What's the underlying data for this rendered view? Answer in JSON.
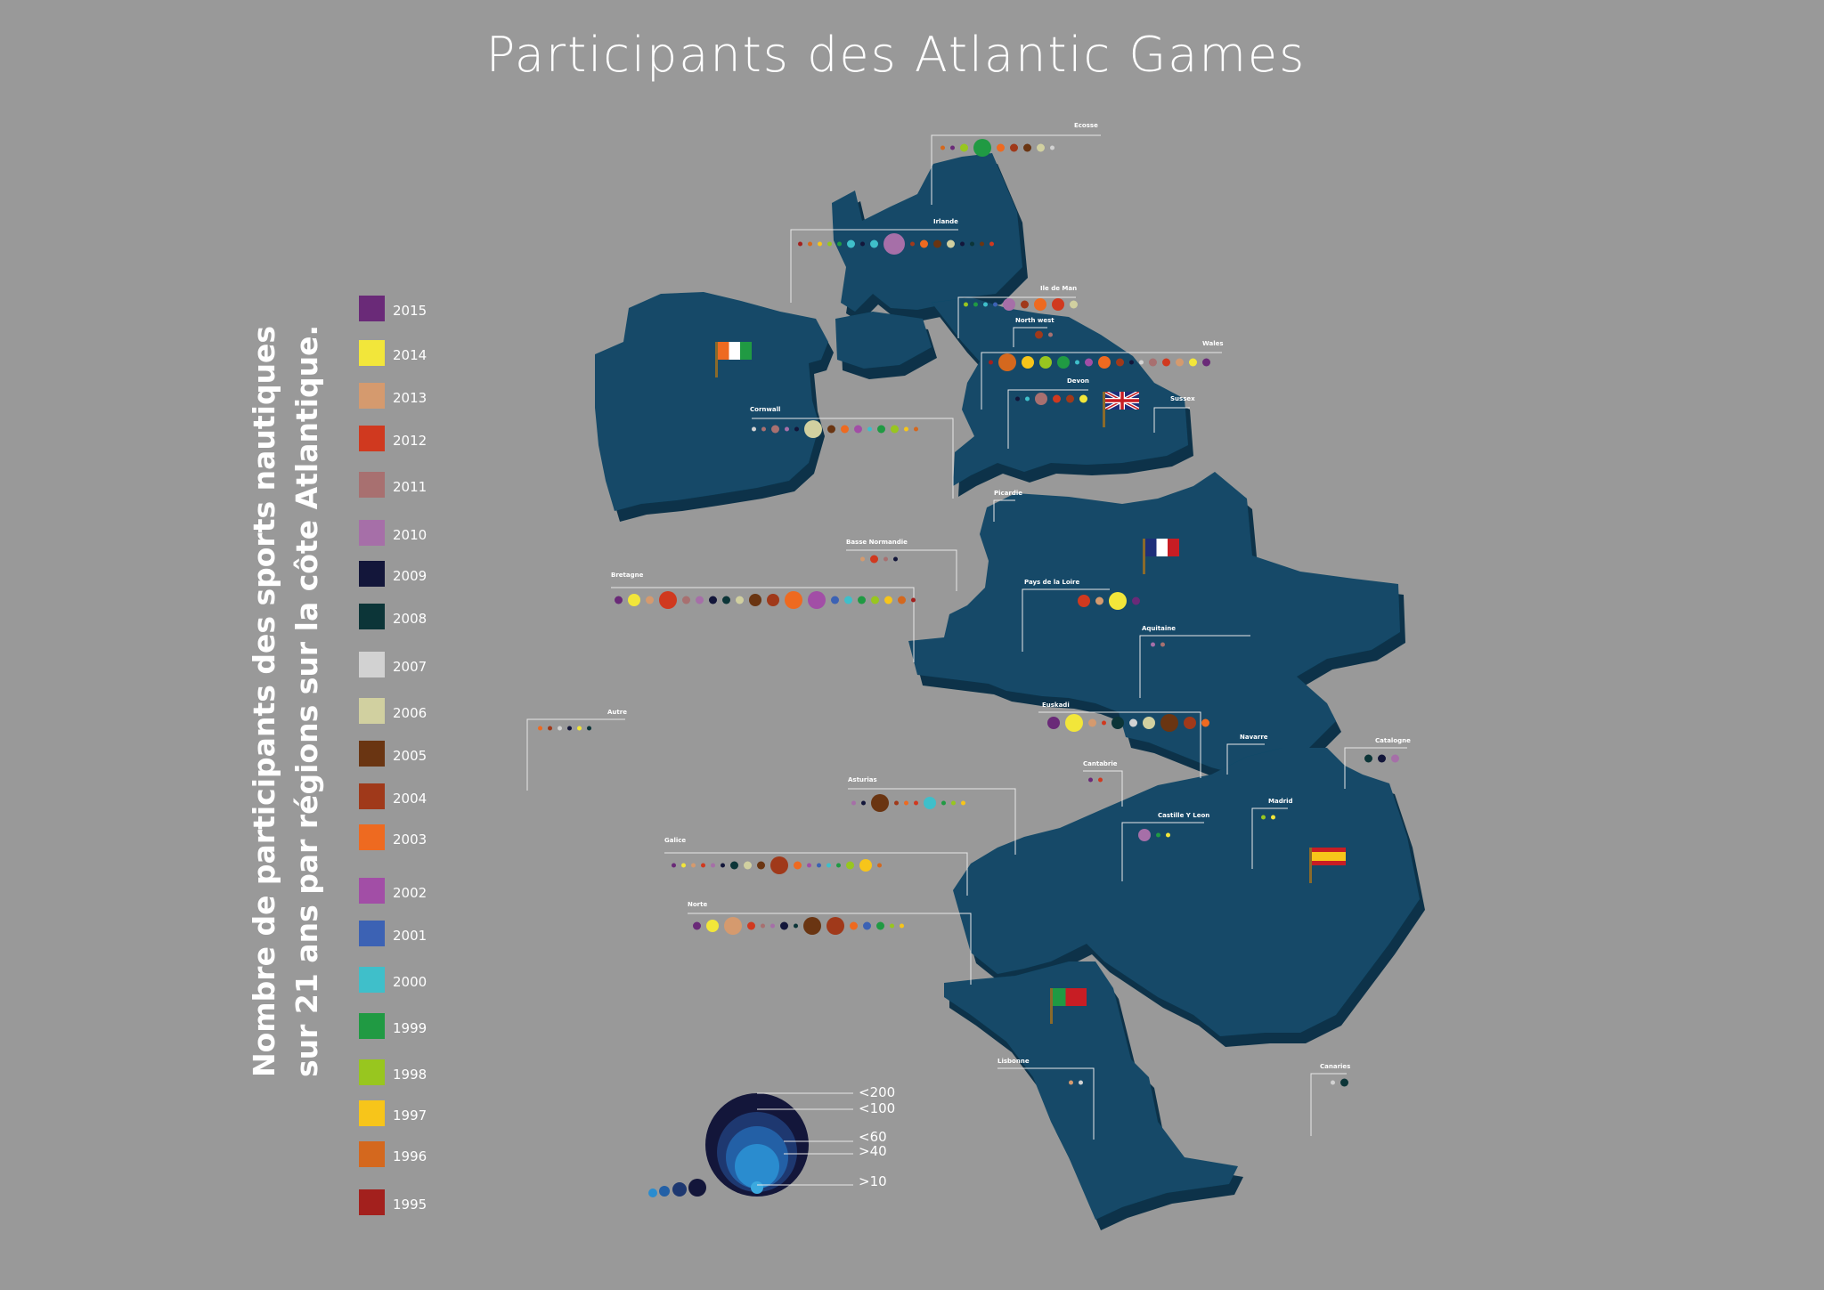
{
  "title": "Participants des Atlantic Games",
  "subtitle": {
    "line1": "Nombre de participants des sports nautiques",
    "line2": "sur 21 ans par régions sur la côte Atlantique."
  },
  "colors": {
    "background": "#999999",
    "land": "#124a68",
    "land_side": "#0b3349",
    "leader": "#e8e8e8"
  },
  "years": [
    {
      "year": "2015",
      "color": "#6a2a78"
    },
    {
      "year": "2014",
      "color": "#f2e63a"
    },
    {
      "year": "2013",
      "color": "#d59a6e"
    },
    {
      "year": "2012",
      "color": "#d0391f"
    },
    {
      "year": "2011",
      "color": "#a87070"
    },
    {
      "year": "2010",
      "color": "#a66fa8"
    },
    {
      "year": "2009",
      "color": "#13163a"
    },
    {
      "year": "2008",
      "color": "#0c3538"
    },
    {
      "year": "2007",
      "color": "#d2d2d2"
    },
    {
      "year": "2006",
      "color": "#d1d0a0"
    },
    {
      "year": "2005",
      "color": "#6a3512"
    },
    {
      "year": "2004",
      "color": "#a0391a"
    },
    {
      "year": "2003",
      "color": "#ee6a20"
    },
    {
      "year": "2002",
      "color": "#a24ea6"
    },
    {
      "year": "2001",
      "color": "#3c62b4"
    },
    {
      "year": "2000",
      "color": "#3fbfca"
    },
    {
      "year": "1999",
      "color": "#209a43"
    },
    {
      "year": "1998",
      "color": "#98c61f"
    },
    {
      "year": "1997",
      "color": "#f7c51a"
    },
    {
      "year": "1996",
      "color": "#d4681e"
    },
    {
      "year": "1995",
      "color": "#a3201d"
    }
  ],
  "size_legend": [
    {
      "label": "<200",
      "r": 5
    },
    {
      "label": "<100",
      "r": 4
    },
    {
      "label": "<60",
      "r": 3
    },
    {
      "label": ">40",
      "r": 2
    },
    {
      "label": ">10",
      "r": 1
    }
  ],
  "regions": [
    {
      "name": "Ecosse",
      "dots": [
        [
          "1996",
          1
        ],
        [
          "2015",
          1
        ],
        [
          "1998",
          2
        ],
        [
          "1999",
          4
        ],
        [
          "2003",
          2
        ],
        [
          "2004",
          2
        ],
        [
          "2005",
          2
        ],
        [
          "2006",
          2
        ],
        [
          "2007",
          1
        ]
      ]
    },
    {
      "name": "Irlande",
      "dots": [
        [
          "1995",
          1
        ],
        [
          "1996",
          1
        ],
        [
          "1997",
          1
        ],
        [
          "1998",
          1
        ],
        [
          "1999",
          1
        ],
        [
          "2000",
          2
        ],
        [
          "2009",
          1
        ],
        [
          "2000",
          2
        ],
        [
          "2010",
          5
        ],
        [
          "2004",
          1
        ],
        [
          "2003",
          2
        ],
        [
          "2005",
          2
        ],
        [
          "2006",
          2
        ],
        [
          "2009",
          1
        ],
        [
          "2008",
          1
        ],
        [
          "2005",
          1
        ],
        [
          "2012",
          1
        ]
      ]
    },
    {
      "name": "Ile de Man",
      "dots": [
        [
          "1998",
          1
        ],
        [
          "1999",
          1
        ],
        [
          "2000",
          1
        ],
        [
          "2001",
          1
        ],
        [
          "2010",
          3
        ],
        [
          "2004",
          2
        ],
        [
          "2003",
          3
        ],
        [
          "2012",
          3
        ],
        [
          "2006",
          2
        ]
      ]
    },
    {
      "name": "North west",
      "dots": [
        [
          "2004",
          2
        ],
        [
          "2011",
          1
        ]
      ]
    },
    {
      "name": "Wales",
      "dots": [
        [
          "1995",
          1
        ],
        [
          "1996",
          4
        ],
        [
          "1997",
          3
        ],
        [
          "1998",
          3
        ],
        [
          "1999",
          3
        ],
        [
          "2000",
          1
        ],
        [
          "2002",
          2
        ],
        [
          "2003",
          3
        ],
        [
          "2004",
          2
        ],
        [
          "2009",
          1
        ],
        [
          "2007",
          1
        ],
        [
          "2011",
          2
        ],
        [
          "2012",
          2
        ],
        [
          "2013",
          2
        ],
        [
          "2014",
          2
        ],
        [
          "2015",
          2
        ]
      ]
    },
    {
      "name": "Devon",
      "dots": [
        [
          "2009",
          1
        ],
        [
          "2000",
          1
        ],
        [
          "2011",
          3
        ],
        [
          "2012",
          2
        ],
        [
          "2004",
          2
        ],
        [
          "2014",
          2
        ]
      ]
    },
    {
      "name": "Sussex",
      "dots": []
    },
    {
      "name": "Cornwall",
      "dots": [
        [
          "2007",
          1
        ],
        [
          "2011",
          1
        ],
        [
          "2011",
          2
        ],
        [
          "2010",
          1
        ],
        [
          "2009",
          1
        ],
        [
          "2006",
          4
        ],
        [
          "2005",
          2
        ],
        [
          "2003",
          2
        ],
        [
          "2002",
          2
        ],
        [
          "2000",
          1
        ],
        [
          "1999",
          2
        ],
        [
          "1998",
          2
        ],
        [
          "1997",
          1
        ],
        [
          "1996",
          1
        ]
      ]
    },
    {
      "name": "Picardie",
      "dots": []
    },
    {
      "name": "Basse Normandie",
      "dots": [
        [
          "2013",
          1
        ],
        [
          "2012",
          2
        ],
        [
          "2011",
          1
        ],
        [
          "2009",
          1
        ]
      ]
    },
    {
      "name": "Bretagne",
      "dots": [
        [
          "2015",
          2
        ],
        [
          "2014",
          3
        ],
        [
          "2013",
          2
        ],
        [
          "2012",
          4
        ],
        [
          "2011",
          2
        ],
        [
          "2010",
          2
        ],
        [
          "2009",
          2
        ],
        [
          "2008",
          2
        ],
        [
          "2006",
          2
        ],
        [
          "2005",
          3
        ],
        [
          "2004",
          3
        ],
        [
          "2003",
          4
        ],
        [
          "2002",
          4
        ],
        [
          "2001",
          2
        ],
        [
          "2000",
          2
        ],
        [
          "1999",
          2
        ],
        [
          "1998",
          2
        ],
        [
          "1997",
          2
        ],
        [
          "1996",
          2
        ],
        [
          "1995",
          1
        ]
      ]
    },
    {
      "name": "Pays de la Loire",
      "dots": [
        [
          "2012",
          3
        ],
        [
          "2013",
          2
        ],
        [
          "2014",
          4
        ],
        [
          "2015",
          2
        ]
      ]
    },
    {
      "name": "Aquitaine",
      "dots": [
        [
          "2010",
          1
        ],
        [
          "2011",
          1
        ]
      ]
    },
    {
      "name": "Autre",
      "dots": [
        [
          "2003",
          1
        ],
        [
          "2004",
          1
        ],
        [
          "2007",
          1
        ],
        [
          "2009",
          1
        ],
        [
          "2014",
          1
        ],
        [
          "2008",
          1
        ]
      ]
    },
    {
      "name": "Euskadi",
      "dots": [
        [
          "2015",
          3
        ],
        [
          "2014",
          4
        ],
        [
          "2013",
          2
        ],
        [
          "2012",
          1
        ],
        [
          "2008",
          3
        ],
        [
          "2007",
          2
        ],
        [
          "2006",
          3
        ],
        [
          "2005",
          4
        ],
        [
          "2004",
          3
        ],
        [
          "2003",
          2
        ]
      ]
    },
    {
      "name": "Navarre",
      "dots": []
    },
    {
      "name": "Catalogne",
      "dots": [
        [
          "2008",
          2
        ],
        [
          "2009",
          2
        ],
        [
          "2010",
          2
        ]
      ]
    },
    {
      "name": "Cantabrie",
      "dots": [
        [
          "2015",
          1
        ],
        [
          "2012",
          1
        ]
      ]
    },
    {
      "name": "Asturias",
      "dots": [
        [
          "2010",
          1
        ],
        [
          "2009",
          1
        ],
        [
          "2005",
          4
        ],
        [
          "2004",
          1
        ],
        [
          "2003",
          1
        ],
        [
          "2012",
          1
        ],
        [
          "2000",
          3
        ],
        [
          "1999",
          1
        ],
        [
          "1998",
          1
        ],
        [
          "1997",
          1
        ]
      ]
    },
    {
      "name": "Castille Y Leon",
      "dots": [
        [
          "2010",
          3
        ],
        [
          "1999",
          1
        ],
        [
          "2014",
          1
        ]
      ]
    },
    {
      "name": "Madrid",
      "dots": [
        [
          "1998",
          1
        ],
        [
          "2014",
          1
        ]
      ]
    },
    {
      "name": "Galice",
      "dots": [
        [
          "2015",
          1
        ],
        [
          "2014",
          1
        ],
        [
          "2013",
          1
        ],
        [
          "2012",
          1
        ],
        [
          "2010",
          1
        ],
        [
          "2009",
          1
        ],
        [
          "2008",
          2
        ],
        [
          "2006",
          2
        ],
        [
          "2005",
          2
        ],
        [
          "2004",
          4
        ],
        [
          "2003",
          2
        ],
        [
          "2002",
          1
        ],
        [
          "2001",
          1
        ],
        [
          "2000",
          1
        ],
        [
          "1999",
          1
        ],
        [
          "1998",
          2
        ],
        [
          "1997",
          3
        ],
        [
          "1996",
          1
        ]
      ]
    },
    {
      "name": "Norte",
      "dots": [
        [
          "2015",
          2
        ],
        [
          "2014",
          3
        ],
        [
          "2013",
          4
        ],
        [
          "2012",
          2
        ],
        [
          "2011",
          1
        ],
        [
          "2010",
          1
        ],
        [
          "2009",
          2
        ],
        [
          "2008",
          1
        ],
        [
          "2005",
          4
        ],
        [
          "2004",
          4
        ],
        [
          "2003",
          2
        ],
        [
          "2001",
          2
        ],
        [
          "1999",
          2
        ],
        [
          "1998",
          1
        ],
        [
          "1997",
          1
        ]
      ]
    },
    {
      "name": "Lisbonne",
      "dots": [
        [
          "2013",
          1
        ],
        [
          "2007",
          1
        ]
      ]
    },
    {
      "name": "Canaries",
      "dots": [
        [
          "2007",
          1
        ],
        [
          "2008",
          2
        ]
      ]
    }
  ]
}
